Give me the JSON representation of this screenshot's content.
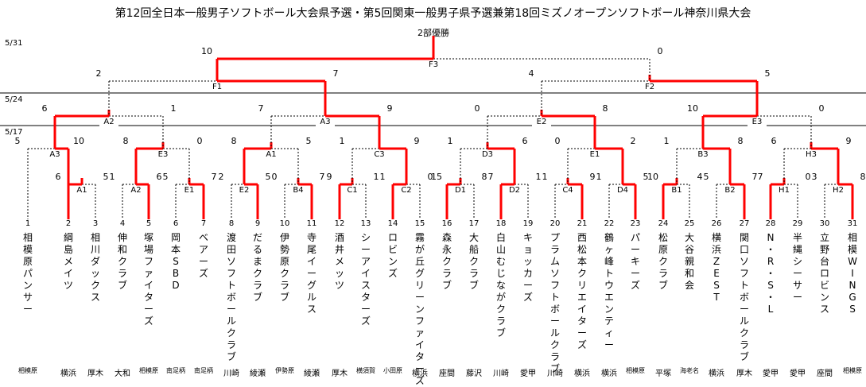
{
  "title": "第12回全日本一般男子ソフトボール大会県予選・第5回関東一般男子県予選兼第18回ミズノオープンソフトボール神奈川県大会",
  "champion_label": "2部優勝",
  "dates": [
    "5/31",
    "5/24",
    "5/17"
  ],
  "teams": [
    {
      "no": "1",
      "name": "相模原パンサー",
      "region": "相模原"
    },
    {
      "no": "2",
      "name": "綱島メイツ",
      "region": "横浜"
    },
    {
      "no": "3",
      "name": "相川ダックス",
      "region": "厚木"
    },
    {
      "no": "4",
      "name": "伸和クラブ",
      "region": "大和"
    },
    {
      "no": "5",
      "name": "塚場ファイターズ",
      "region": "相模原"
    },
    {
      "no": "6",
      "name": "岡本SBD",
      "region": "南足柄"
    },
    {
      "no": "7",
      "name": "ベアーズ",
      "region": "南足柄"
    },
    {
      "no": "8",
      "name": "渡田ソフトボールクラブ",
      "region": "川崎"
    },
    {
      "no": "9",
      "name": "だるまクラブ",
      "region": "綾瀬"
    },
    {
      "no": "10",
      "name": "伊勢原クラブ",
      "region": "伊勢原"
    },
    {
      "no": "11",
      "name": "寺尾イーグルス",
      "region": "綾瀬"
    },
    {
      "no": "12",
      "name": "酒井メッツ",
      "region": "厚木"
    },
    {
      "no": "13",
      "name": "シーアイスターズ",
      "region": "横須賀"
    },
    {
      "no": "14",
      "name": "ロビンズ",
      "region": "小田原"
    },
    {
      "no": "15",
      "name": "霧が丘グリーンファイターズ",
      "region": "横浜"
    },
    {
      "no": "16",
      "name": "森永クラブ",
      "region": "座間"
    },
    {
      "no": "17",
      "name": "大船クラブ",
      "region": "藤沢"
    },
    {
      "no": "18",
      "name": "白山むじながクラブ",
      "region": "川崎"
    },
    {
      "no": "19",
      "name": "キョッカーズ",
      "region": "愛甲"
    },
    {
      "no": "20",
      "name": "プラムソフトボールクラブ",
      "region": "川崎"
    },
    {
      "no": "21",
      "name": "西松本クリエイターズ",
      "region": "横浜"
    },
    {
      "no": "22",
      "name": "鶴ヶ峰トウエンティー",
      "region": "横浜"
    },
    {
      "no": "23",
      "name": "パーキーズ",
      "region": "相模原"
    },
    {
      "no": "24",
      "name": "松原クラブ",
      "region": "平塚"
    },
    {
      "no": "25",
      "name": "大谷親和会",
      "region": "海老名"
    },
    {
      "no": "26",
      "name": "横浜ZEST",
      "region": "横浜"
    },
    {
      "no": "27",
      "name": "関口ソフトボールクラブ",
      "region": "厚木"
    },
    {
      "no": "28",
      "name": "N・R・S・L",
      "region": "愛甲"
    },
    {
      "no": "29",
      "name": "半縄シーサー",
      "region": "愛甲"
    },
    {
      "no": "30",
      "name": "立野台ロビンス",
      "region": "座間"
    },
    {
      "no": "31",
      "name": "相模WINGS",
      "region": "相模原"
    }
  ],
  "matches": [
    {
      "label": "A1",
      "left_score": "6",
      "right_score": "5"
    },
    {
      "label": "A2",
      "left_score": "1",
      "right_score": "6"
    },
    {
      "label": "E1",
      "left_score": "5",
      "right_score": "7"
    },
    {
      "label": "E2",
      "left_score": "2",
      "right_score": "5"
    },
    {
      "label": "B4",
      "left_score": "0",
      "right_score": "7"
    },
    {
      "label": "C1",
      "left_score": "9",
      "right_score": "1"
    },
    {
      "label": "C2",
      "left_score": "1",
      "right_score": "0"
    },
    {
      "label": "D1",
      "left_score": "15",
      "right_score": "8"
    },
    {
      "label": "D2",
      "left_score": "7",
      "right_score": "1"
    },
    {
      "label": "C4",
      "left_score": "1",
      "right_score": "9"
    },
    {
      "label": "D4",
      "left_score": "1",
      "right_score": "5"
    },
    {
      "label": "B1",
      "left_score": "10",
      "right_score": "4"
    },
    {
      "label": "B2",
      "left_score": "5",
      "right_score": "7"
    },
    {
      "label": "H1",
      "left_score": "7",
      "right_score": "0"
    },
    {
      "label": "H2",
      "left_score": "3",
      "right_score": "8"
    },
    {
      "label": "A3",
      "left_score": "5",
      "right_score": "10"
    },
    {
      "label": "E3",
      "left_score": "8",
      "right_score": "0"
    },
    {
      "label": "A1",
      "left_score": "8",
      "right_score": "5"
    },
    {
      "label": "C3",
      "left_score": "1",
      "right_score": "9"
    },
    {
      "label": "D3",
      "left_score": "1",
      "right_score": "6"
    },
    {
      "label": "E1",
      "left_score": "0",
      "right_score": "2"
    },
    {
      "label": "B3",
      "left_score": "1",
      "right_score": "8"
    },
    {
      "label": "H3",
      "left_score": "6",
      "right_score": "9"
    },
    {
      "label": "A2",
      "left_score": "6",
      "right_score": "1"
    },
    {
      "label": "A3",
      "left_score": "7",
      "right_score": "9"
    },
    {
      "label": "E2",
      "left_score": "0",
      "right_score": "8"
    },
    {
      "label": "E3",
      "left_score": "10",
      "right_score": "0"
    },
    {
      "label": "F1",
      "left_score": "2",
      "right_score": "7"
    },
    {
      "label": "F2",
      "left_score": "4",
      "right_score": "5"
    },
    {
      "label": "F3",
      "left_score": "10",
      "right_score": "0"
    }
  ],
  "colors": {
    "winner_line": "#ff0000",
    "loser_line": "#000000",
    "text": "#000000"
  }
}
